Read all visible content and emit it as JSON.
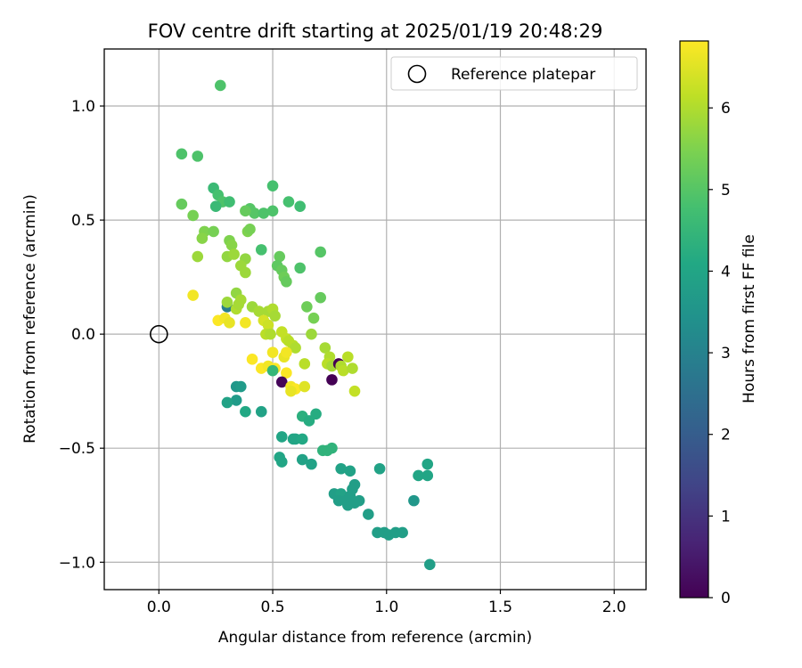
{
  "chart_data": {
    "type": "scatter",
    "title": "FOV centre drift starting at 2025/01/19 20:48:29",
    "xlabel": "Angular distance from reference (arcmin)",
    "ylabel": "Rotation from reference (arcmin)",
    "xlim": [
      -0.24,
      2.14
    ],
    "ylim": [
      -1.12,
      1.25
    ],
    "xticks": [
      0.0,
      0.5,
      1.0,
      1.5,
      2.0
    ],
    "xtick_labels": [
      "0.0",
      "0.5",
      "1.0",
      "1.5",
      "2.0"
    ],
    "yticks": [
      -1.0,
      -0.5,
      0.0,
      0.5,
      1.0
    ],
    "ytick_labels": [
      "−1.0",
      "−0.5",
      "0.0",
      "0.5",
      "1.0"
    ],
    "grid": true,
    "legend": {
      "placement": "top-right",
      "entries": [
        {
          "label": "Reference platepar",
          "marker": "open-circle"
        }
      ]
    },
    "reference_point": {
      "x": 0.0,
      "y": 0.0
    },
    "colorbar": {
      "label": "Hours from first FF file",
      "colormap": "viridis",
      "range": [
        0,
        6.82
      ],
      "ticks": [
        0,
        1,
        2,
        3,
        4,
        5,
        6
      ],
      "tick_labels": [
        "0",
        "1",
        "2",
        "3",
        "4",
        "5",
        "6"
      ]
    },
    "series": [
      {
        "points": [
          [
            0.27,
            1.09,
            4.9
          ],
          [
            0.1,
            0.79,
            4.9
          ],
          [
            0.17,
            0.78,
            4.9
          ],
          [
            0.24,
            0.64,
            4.6
          ],
          [
            0.26,
            0.61,
            4.8
          ],
          [
            0.28,
            0.58,
            4.9
          ],
          [
            0.31,
            0.58,
            4.7
          ],
          [
            0.25,
            0.56,
            4.6
          ],
          [
            0.1,
            0.57,
            5.2
          ],
          [
            0.15,
            0.52,
            5.4
          ],
          [
            0.5,
            0.65,
            4.8
          ],
          [
            0.57,
            0.58,
            4.8
          ],
          [
            0.62,
            0.56,
            4.7
          ],
          [
            0.4,
            0.55,
            5.0
          ],
          [
            0.42,
            0.53,
            5.0
          ],
          [
            0.46,
            0.53,
            4.9
          ],
          [
            0.5,
            0.54,
            4.9
          ],
          [
            0.38,
            0.54,
            5.2
          ],
          [
            0.2,
            0.45,
            5.5
          ],
          [
            0.19,
            0.42,
            5.6
          ],
          [
            0.24,
            0.45,
            5.4
          ],
          [
            0.39,
            0.45,
            5.5
          ],
          [
            0.4,
            0.46,
            5.4
          ],
          [
            0.31,
            0.41,
            5.5
          ],
          [
            0.32,
            0.39,
            5.6
          ],
          [
            0.45,
            0.37,
            4.8
          ],
          [
            0.17,
            0.34,
            5.8
          ],
          [
            0.3,
            0.34,
            5.7
          ],
          [
            0.33,
            0.35,
            5.8
          ],
          [
            0.38,
            0.33,
            5.7
          ],
          [
            0.53,
            0.34,
            5.2
          ],
          [
            0.52,
            0.3,
            5.1
          ],
          [
            0.54,
            0.28,
            5.2
          ],
          [
            0.55,
            0.25,
            5.3
          ],
          [
            0.56,
            0.23,
            5.2
          ],
          [
            0.62,
            0.29,
            4.9
          ],
          [
            0.71,
            0.36,
            5.0
          ],
          [
            0.36,
            0.3,
            5.8
          ],
          [
            0.38,
            0.27,
            5.8
          ],
          [
            0.15,
            0.17,
            6.7
          ],
          [
            0.34,
            0.18,
            5.7
          ],
          [
            0.36,
            0.15,
            5.9
          ],
          [
            0.3,
            0.12,
            2.9
          ],
          [
            0.3,
            0.14,
            5.8
          ],
          [
            0.34,
            0.11,
            6.0
          ],
          [
            0.35,
            0.13,
            5.9
          ],
          [
            0.41,
            0.12,
            5.8
          ],
          [
            0.44,
            0.1,
            5.9
          ],
          [
            0.48,
            0.1,
            5.9
          ],
          [
            0.5,
            0.11,
            6.0
          ],
          [
            0.51,
            0.08,
            5.9
          ],
          [
            0.71,
            0.16,
            5.2
          ],
          [
            0.65,
            0.12,
            5.3
          ],
          [
            0.68,
            0.07,
            5.4
          ],
          [
            0.26,
            0.06,
            6.8
          ],
          [
            0.29,
            0.07,
            6.7
          ],
          [
            0.31,
            0.05,
            6.6
          ],
          [
            0.38,
            0.05,
            6.7
          ],
          [
            0.46,
            0.06,
            6.4
          ],
          [
            0.48,
            0.04,
            6.3
          ],
          [
            0.54,
            0.01,
            6.2
          ],
          [
            0.47,
            0.0,
            6.1
          ],
          [
            0.49,
            0.0,
            6.0
          ],
          [
            0.56,
            -0.02,
            6.2
          ],
          [
            0.57,
            -0.03,
            6.1
          ],
          [
            0.59,
            -0.05,
            6.1
          ],
          [
            0.6,
            -0.06,
            6.0
          ],
          [
            0.67,
            0.0,
            5.8
          ],
          [
            0.73,
            -0.06,
            5.9
          ],
          [
            0.75,
            -0.1,
            6.0
          ],
          [
            0.5,
            -0.08,
            6.7
          ],
          [
            0.55,
            -0.1,
            6.6
          ],
          [
            0.56,
            -0.08,
            6.7
          ],
          [
            0.41,
            -0.11,
            6.8
          ],
          [
            0.45,
            -0.15,
            6.8
          ],
          [
            0.48,
            -0.14,
            6.7
          ],
          [
            0.51,
            -0.15,
            6.8
          ],
          [
            0.5,
            -0.16,
            4.5
          ],
          [
            0.56,
            -0.17,
            6.8
          ],
          [
            0.74,
            -0.13,
            6.1
          ],
          [
            0.76,
            -0.14,
            5.9
          ],
          [
            0.79,
            -0.13,
            0.0
          ],
          [
            0.8,
            -0.14,
            6.0
          ],
          [
            0.81,
            -0.16,
            6.1
          ],
          [
            0.83,
            -0.1,
            6.1
          ],
          [
            0.85,
            -0.15,
            6.0
          ],
          [
            0.54,
            -0.21,
            0.1
          ],
          [
            0.76,
            -0.2,
            0.0
          ],
          [
            0.58,
            -0.23,
            6.7
          ],
          [
            0.6,
            -0.24,
            6.8
          ],
          [
            0.58,
            -0.25,
            6.6
          ],
          [
            0.64,
            -0.23,
            6.5
          ],
          [
            0.86,
            -0.25,
            6.2
          ],
          [
            0.64,
            -0.13,
            6.1
          ],
          [
            0.34,
            -0.23,
            3.6
          ],
          [
            0.36,
            -0.23,
            3.7
          ],
          [
            0.34,
            -0.29,
            3.7
          ],
          [
            0.3,
            -0.3,
            3.9
          ],
          [
            0.38,
            -0.34,
            4.1
          ],
          [
            0.45,
            -0.34,
            3.9
          ],
          [
            0.63,
            -0.36,
            4.3
          ],
          [
            0.66,
            -0.38,
            4.2
          ],
          [
            0.69,
            -0.35,
            4.2
          ],
          [
            0.54,
            -0.45,
            4.0
          ],
          [
            0.59,
            -0.46,
            4.0
          ],
          [
            0.6,
            -0.46,
            4.0
          ],
          [
            0.63,
            -0.46,
            4.1
          ],
          [
            0.72,
            -0.51,
            4.4
          ],
          [
            0.74,
            -0.51,
            4.4
          ],
          [
            0.76,
            -0.5,
            4.4
          ],
          [
            0.53,
            -0.54,
            4.0
          ],
          [
            0.54,
            -0.56,
            4.0
          ],
          [
            0.63,
            -0.55,
            3.9
          ],
          [
            0.67,
            -0.57,
            3.9
          ],
          [
            0.8,
            -0.59,
            3.9
          ],
          [
            0.84,
            -0.6,
            3.9
          ],
          [
            0.97,
            -0.59,
            3.9
          ],
          [
            1.18,
            -0.57,
            4.0
          ],
          [
            1.14,
            -0.62,
            4.0
          ],
          [
            1.18,
            -0.62,
            4.0
          ],
          [
            0.85,
            -0.68,
            3.8
          ],
          [
            0.86,
            -0.66,
            3.8
          ],
          [
            0.77,
            -0.7,
            3.8
          ],
          [
            0.8,
            -0.7,
            3.9
          ],
          [
            0.79,
            -0.73,
            3.8
          ],
          [
            0.82,
            -0.73,
            3.8
          ],
          [
            0.83,
            -0.75,
            3.8
          ],
          [
            0.86,
            -0.74,
            3.8
          ],
          [
            0.84,
            -0.71,
            3.8
          ],
          [
            0.88,
            -0.73,
            3.8
          ],
          [
            0.92,
            -0.79,
            3.8
          ],
          [
            1.12,
            -0.73,
            3.6
          ],
          [
            0.96,
            -0.87,
            3.8
          ],
          [
            0.99,
            -0.87,
            3.8
          ],
          [
            1.01,
            -0.88,
            3.8
          ],
          [
            1.04,
            -0.87,
            3.8
          ],
          [
            1.07,
            -0.87,
            3.8
          ],
          [
            1.19,
            -1.01,
            3.8
          ]
        ]
      }
    ]
  }
}
